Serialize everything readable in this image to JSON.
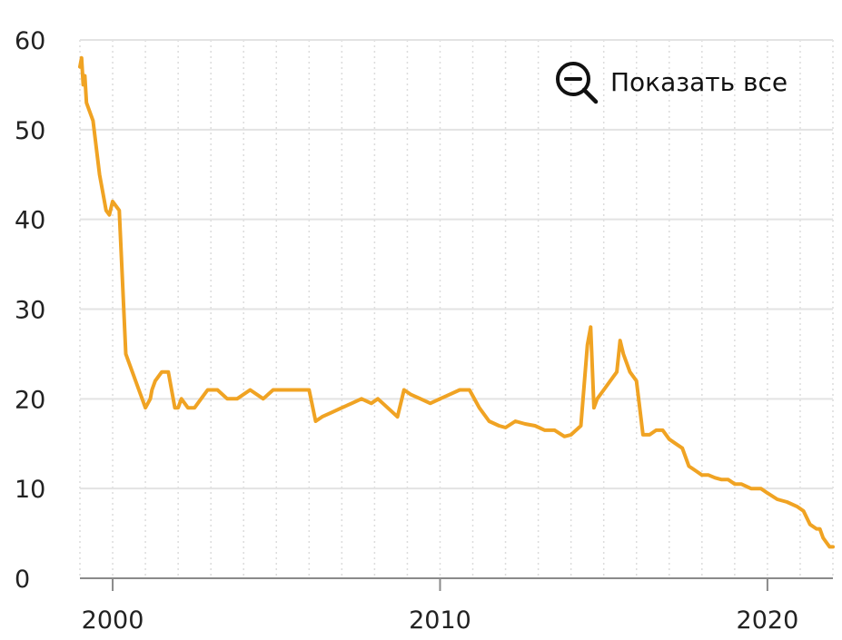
{
  "chart_data": {
    "type": "line",
    "title": "",
    "xlabel": "",
    "ylabel": "",
    "x_range": [
      1999.0,
      2022.0
    ],
    "ylim": [
      0,
      60
    ],
    "y_ticks": [
      "0",
      "10",
      "20",
      "30",
      "40",
      "50",
      "60"
    ],
    "x_ticks": [
      "2000",
      "2010",
      "2020"
    ],
    "grid": true,
    "legend": "none",
    "colors": {
      "series": "#F0A323",
      "grid": "#E3E3E3",
      "axis": "#8A8A8A"
    },
    "series": [
      {
        "x": [
          1999.0,
          1999.05,
          1999.1,
          1999.15,
          1999.2,
          1999.3,
          1999.4,
          1999.5,
          1999.6,
          1999.7,
          1999.8,
          1999.9,
          2000.0,
          2000.2,
          2000.4,
          2000.6,
          2000.8,
          2001.0,
          2001.15,
          2001.2,
          2001.3,
          2001.5,
          2001.7,
          2001.9,
          2002.0,
          2002.1,
          2002.3,
          2002.5,
          2002.7,
          2002.9,
          2003.2,
          2003.5,
          2003.8,
          2004.2,
          2004.6,
          2004.9,
          2005.3,
          2005.7,
          2006.0,
          2006.2,
          2006.4,
          2006.7,
          2007.0,
          2007.3,
          2007.6,
          2007.9,
          2008.1,
          2008.4,
          2008.7,
          2008.9,
          2009.1,
          2009.4,
          2009.7,
          2010.0,
          2010.3,
          2010.6,
          2010.9,
          2011.2,
          2011.5,
          2011.8,
          2012.0,
          2012.3,
          2012.6,
          2012.9,
          2013.2,
          2013.5,
          2013.8,
          2014.0,
          2014.3,
          2014.5,
          2014.6,
          2014.7,
          2014.8,
          2015.0,
          2015.2,
          2015.4,
          2015.5,
          2015.6,
          2015.8,
          2016.0,
          2016.2,
          2016.4,
          2016.6,
          2016.8,
          2017.0,
          2017.2,
          2017.4,
          2017.6,
          2017.8,
          2018.0,
          2018.2,
          2018.4,
          2018.6,
          2018.8,
          2019.0,
          2019.2,
          2019.5,
          2019.8,
          2020.0,
          2020.3,
          2020.6,
          2020.9,
          2021.1,
          2021.3,
          2021.5,
          2021.6,
          2021.7,
          2021.8,
          2021.9,
          2022.0
        ],
        "values": [
          57,
          58,
          55,
          56,
          53,
          52,
          51,
          48,
          45,
          43,
          41,
          40.5,
          42,
          41,
          25,
          23,
          21,
          19,
          20,
          21,
          22,
          23,
          23,
          19,
          19,
          20,
          19,
          19,
          20,
          21,
          21,
          20,
          20,
          21,
          20,
          21,
          21,
          21,
          21,
          17.5,
          18,
          18.5,
          19,
          19.5,
          20,
          19.5,
          20,
          19,
          18,
          21,
          20.5,
          20,
          19.5,
          20,
          20.5,
          21,
          21,
          19,
          17.5,
          17,
          16.8,
          17.5,
          17.2,
          17,
          16.5,
          16.5,
          15.8,
          16,
          17,
          26,
          28,
          19,
          20,
          21,
          22,
          23,
          26.5,
          25,
          23,
          22,
          16,
          16,
          16.5,
          16.5,
          15.5,
          15,
          14.5,
          12.5,
          12,
          11.5,
          11.5,
          11.2,
          11,
          11,
          10.5,
          10.5,
          10,
          10,
          9.5,
          8.8,
          8.5,
          8,
          7.5,
          6,
          5.5,
          5.5,
          4.5,
          4,
          3.5,
          3.5
        ]
      }
    ]
  },
  "ui": {
    "reset_zoom_label": "Показать все",
    "reset_zoom_icon": "zoom-out-icon"
  }
}
